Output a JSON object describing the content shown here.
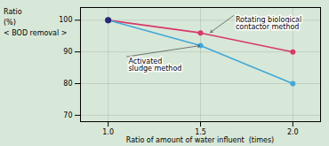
{
  "chart_data": {
    "type": "line",
    "xlabel": "Ratio of amount of water influent  (times)",
    "ylabel": "Ratio\n(%)\n< BOD removal >",
    "x": [
      1.0,
      1.5,
      2.0
    ],
    "series": [
      {
        "color": "#d8386a",
        "values": [
          100,
          96,
          90
        ],
        "marker": "o"
      },
      {
        "color": "#40a8d8",
        "values": [
          100,
          92,
          80
        ],
        "marker": "o"
      }
    ],
    "points": [
      {
        "x": 1.0,
        "y": 100,
        "color": "#282878"
      }
    ],
    "annotations": [
      {
        "text": "Rotating biological\ncontactor method",
        "x": 1.55,
        "y": 96,
        "text_x": 1.68,
        "text_y": 101.5
      },
      {
        "text": "Activated\nsludge method",
        "x": 1.5,
        "y": 92,
        "text_x": 1.1,
        "text_y": 88.5
      }
    ],
    "xlim": [
      0.85,
      2.15
    ],
    "ylim": [
      68,
      104
    ],
    "xticks": [
      {
        "value": 1.0,
        "label": "1.0"
      },
      {
        "value": 1.5,
        "label": "1.5"
      },
      {
        "value": 2.0,
        "label": "2.0"
      }
    ],
    "yticks": [
      70,
      80,
      90,
      100
    ],
    "grid": true,
    "background_color": "#d8e8d8"
  }
}
